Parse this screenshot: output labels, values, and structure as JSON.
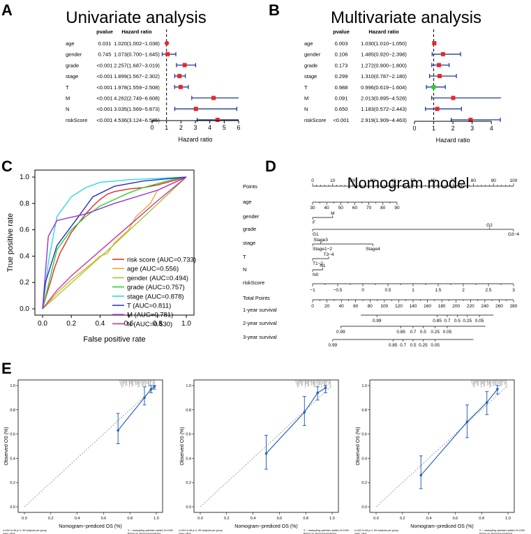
{
  "panels": {
    "A": "A",
    "B": "B",
    "C": "C",
    "D": "D",
    "E": "E"
  },
  "chart_data": [
    {
      "type": "forest",
      "id": "univariate",
      "title": "Univariate analysis",
      "col_headers": {
        "pvalue": "pvalue",
        "hr": "Hazard ratio"
      },
      "xlabel": "Hazard ratio",
      "xlim": [
        0,
        6
      ],
      "ticks": [
        0,
        1,
        2,
        3,
        4,
        5,
        6
      ],
      "ref_line": 1,
      "rows": [
        {
          "name": "age",
          "pvalue": "0.031",
          "hr_text": "1.020(1.002−1.038)",
          "hr": 1.02,
          "lo": 1.002,
          "hi": 1.038
        },
        {
          "name": "gender",
          "pvalue": "0.745",
          "hr_text": "1.073(0.700−1.645)",
          "hr": 1.073,
          "lo": 0.7,
          "hi": 1.645
        },
        {
          "name": "grade",
          "pvalue": "<0.001",
          "hr_text": "2.257(1.687−3.019)",
          "hr": 2.257,
          "lo": 1.687,
          "hi": 3.019
        },
        {
          "name": "stage",
          "pvalue": "<0.001",
          "hr_text": "1.899(1.567−2.302)",
          "hr": 1.899,
          "lo": 1.567,
          "hi": 2.302
        },
        {
          "name": "T",
          "pvalue": "<0.001",
          "hr_text": "1.978(1.559−2.508)",
          "hr": 1.978,
          "lo": 1.559,
          "hi": 2.508
        },
        {
          "name": "M",
          "pvalue": "<0.001",
          "hr_text": "4.262(2.749−6.608)",
          "hr": 4.262,
          "lo": 2.749,
          "hi": 6.608
        },
        {
          "name": "N",
          "pvalue": "<0.001",
          "hr_text": "3.035(1.569−5.873)",
          "hr": 3.035,
          "lo": 1.569,
          "hi": 5.873
        },
        {
          "name": "riskScore",
          "pvalue": "<0.001",
          "hr_text": "4.536(3.124−6.585)",
          "hr": 4.536,
          "lo": 3.124,
          "hi": 6.585
        }
      ]
    },
    {
      "type": "forest",
      "id": "multivariate",
      "title": "Multivariate analysis",
      "col_headers": {
        "pvalue": "pvalue",
        "hr": "Hazard ratio"
      },
      "xlabel": "Hazard ratio",
      "xlim": [
        0,
        4.5
      ],
      "ticks": [
        0,
        1,
        2,
        3,
        4
      ],
      "ref_line": 1,
      "rows": [
        {
          "name": "age",
          "pvalue": "0.003",
          "hr_text": "1.030(1.010−1.050)",
          "hr": 1.03,
          "lo": 1.01,
          "hi": 1.05,
          "color": "#e8262a"
        },
        {
          "name": "gender",
          "pvalue": "0.106",
          "hr_text": "1.485(0.920−2.398)",
          "hr": 1.485,
          "lo": 0.92,
          "hi": 2.398,
          "color": "#e8262a"
        },
        {
          "name": "grade",
          "pvalue": "0.173",
          "hr_text": "1.272(0.900−1.800)",
          "hr": 1.272,
          "lo": 0.9,
          "hi": 1.8,
          "color": "#e8262a"
        },
        {
          "name": "stage",
          "pvalue": "0.299",
          "hr_text": "1.310(0.787−2.180)",
          "hr": 1.31,
          "lo": 0.787,
          "hi": 2.18,
          "color": "#e8262a"
        },
        {
          "name": "T",
          "pvalue": "0.988",
          "hr_text": "0.996(0.619−1.604)",
          "hr": 0.996,
          "lo": 0.619,
          "hi": 1.604,
          "color": "#2bd12b"
        },
        {
          "name": "M",
          "pvalue": "0.091",
          "hr_text": "2.013(0.895−4.528)",
          "hr": 2.013,
          "lo": 0.895,
          "hi": 4.528,
          "color": "#e8262a"
        },
        {
          "name": "N",
          "pvalue": "0.650",
          "hr_text": "1.183(0.572−2.443)",
          "hr": 1.183,
          "lo": 0.572,
          "hi": 2.443,
          "color": "#e8262a"
        },
        {
          "name": "riskScore",
          "pvalue": "<0.001",
          "hr_text": "2.919(1.909−4.463)",
          "hr": 2.919,
          "lo": 1.909,
          "hi": 4.463,
          "color": "#e8262a"
        }
      ]
    },
    {
      "type": "line",
      "id": "roc",
      "xlabel": "False positive rate",
      "ylabel": "True positive rate",
      "xlim": [
        0,
        1
      ],
      "ylim": [
        0,
        1
      ],
      "ticks": [
        "0.0",
        "0.2",
        "0.4",
        "0.6",
        "0.8",
        "1.0"
      ],
      "series": [
        {
          "name": "risk score",
          "label": "risk score (AUC=0.733)",
          "color": "#e8262a",
          "x": [
            0,
            0.02,
            0.04,
            0.06,
            0.08,
            0.1,
            0.12,
            0.16,
            0.2,
            0.25,
            0.3,
            0.35,
            0.4,
            0.45,
            0.5,
            0.55,
            0.6,
            0.7,
            0.8,
            0.9,
            1.0
          ],
          "y": [
            0,
            0.08,
            0.15,
            0.22,
            0.3,
            0.36,
            0.42,
            0.5,
            0.58,
            0.65,
            0.72,
            0.78,
            0.83,
            0.87,
            0.89,
            0.9,
            0.91,
            0.92,
            0.94,
            0.97,
            1.0
          ]
        },
        {
          "name": "age",
          "label": "age (AUC=0.556)",
          "color": "#f0a92a",
          "x": [
            0,
            0.1,
            0.2,
            0.35,
            0.4,
            0.45,
            0.5,
            0.55,
            0.6,
            0.65,
            0.7,
            0.75,
            0.8,
            0.9,
            1.0
          ],
          "y": [
            0,
            0.12,
            0.22,
            0.35,
            0.4,
            0.42,
            0.5,
            0.55,
            0.6,
            0.7,
            0.75,
            0.8,
            0.9,
            0.95,
            1.0
          ]
        },
        {
          "name": "gender",
          "label": "gender (AUC=0.494)",
          "color": "#9acd32",
          "x": [
            0,
            0.5,
            1.0
          ],
          "y": [
            0,
            0.49,
            1.0
          ]
        },
        {
          "name": "grade",
          "label": "grade (AUC=0.757)",
          "color": "#2bd12b",
          "x": [
            0,
            0.04,
            0.1,
            0.2,
            0.3,
            0.4,
            0.5,
            0.6,
            0.7,
            0.8,
            0.9,
            1.0
          ],
          "y": [
            0,
            0.18,
            0.45,
            0.6,
            0.7,
            0.78,
            0.83,
            0.88,
            0.92,
            0.95,
            0.98,
            1.0
          ]
        },
        {
          "name": "stage",
          "label": "stage (AUC=0.878)",
          "color": "#2bd9e8",
          "x": [
            0,
            0.04,
            0.1,
            0.2,
            0.3,
            0.4,
            0.6,
            0.8,
            1.0
          ],
          "y": [
            0,
            0.35,
            0.7,
            0.85,
            0.92,
            0.96,
            0.98,
            0.99,
            1.0
          ]
        },
        {
          "name": "T",
          "label": "T (AUC=0.811)",
          "color": "#2a2ac8",
          "x": [
            0,
            0.02,
            0.1,
            0.25,
            0.35,
            0.5,
            0.7,
            1.0
          ],
          "y": [
            0,
            0.2,
            0.48,
            0.7,
            0.85,
            0.93,
            0.97,
            1.0
          ]
        },
        {
          "name": "M",
          "label": "M (AUC=0.781)",
          "color": "#9b30d0",
          "x": [
            0,
            0.04,
            0.1,
            0.3,
            0.5,
            0.8,
            1.0
          ],
          "y": [
            0,
            0.55,
            0.67,
            0.72,
            0.8,
            0.9,
            1.0
          ]
        },
        {
          "name": "N",
          "label": "N (AUC=0.530)",
          "color": "#d030a0",
          "x": [
            0,
            0.1,
            0.2,
            0.4,
            0.6,
            0.8,
            1.0
          ],
          "y": [
            0,
            0.14,
            0.25,
            0.44,
            0.63,
            0.82,
            1.0
          ]
        }
      ]
    },
    {
      "type": "nomogram",
      "id": "nomogram",
      "title": "Nomogram model",
      "rows": [
        {
          "name": "Points",
          "range": [
            0,
            100
          ],
          "ticks": [
            0,
            10,
            20,
            30,
            40,
            50,
            60,
            70,
            80,
            90,
            100
          ],
          "labels_above": true
        },
        {
          "name": "age",
          "range": [
            30,
            90
          ],
          "ticks": [
            30,
            40,
            50,
            60,
            70,
            80,
            90
          ],
          "labels_above": false,
          "tick_labels": [
            "30",
            "40",
            "50",
            "60",
            "70",
            "80",
            "90"
          ],
          "tick_label_xs": [
            30,
            40,
            50,
            60,
            70,
            80,
            90
          ],
          "line_points": [
            0,
            42
          ]
        },
        {
          "name": "gender",
          "line_points": [
            0,
            10
          ],
          "points": [
            {
              "label": "F",
              "pt": 0,
              "side": "below"
            },
            {
              "label": "M",
              "pt": 10,
              "side": "above"
            }
          ]
        },
        {
          "name": "grade",
          "line_points": [
            0,
            100
          ],
          "points": [
            {
              "label": "G1",
              "pt": 0,
              "side": "below"
            },
            {
              "label": "G2",
              "pt": 88,
              "side": "above"
            },
            {
              "label": "G3−4",
              "pt": 100,
              "side": "below"
            }
          ]
        },
        {
          "name": "stage",
          "line_points": [
            0,
            30
          ],
          "points": [
            {
              "label": "Stage1−2",
              "pt": 0,
              "side": "below"
            },
            {
              "label": "Stage3",
              "pt": 4,
              "side": "above"
            },
            {
              "label": "Stage4",
              "pt": 30,
              "side": "below"
            }
          ]
        },
        {
          "name": "T",
          "line_points": [
            0,
            8
          ],
          "points": [
            {
              "label": "T1−2",
              "pt": 0,
              "side": "below"
            },
            {
              "label": "T3−4",
              "pt": 8,
              "side": "above"
            }
          ]
        },
        {
          "name": "N",
          "line_points": [
            0,
            5
          ],
          "points": [
            {
              "label": "N0",
              "pt": 0,
              "side": "below"
            },
            {
              "label": "N1",
              "pt": 5,
              "side": "above"
            }
          ]
        },
        {
          "name": "riskScore",
          "scale": {
            "pt_start": 0,
            "pt_end": 100,
            "ticks": [
              "−1",
              "−0.5",
              "0",
              "0.5",
              "1",
              "1.5",
              "2",
              "2.5",
              "3"
            ]
          }
        },
        {
          "name": "Total Points",
          "scale": {
            "pt_start": 0,
            "pt_end": 100,
            "ticks": [
              "0",
              "20",
              "40",
              "60",
              "80",
              "100",
              "120",
              "140",
              "160",
              "180",
              "200",
              "220",
              "240",
              "260",
              "280"
            ]
          }
        },
        {
          "name": "1-year survival",
          "surv": {
            "line": [
              24,
              90
            ],
            "ticks": [
              [
                "0.99",
                32
              ],
              [
                "0.85",
                62
              ],
              [
                "0.7",
                67
              ],
              [
                "0.5",
                72
              ],
              [
                "0.25",
                77
              ],
              [
                "0.05",
                83
              ]
            ]
          }
        },
        {
          "name": "2-year survival",
          "surv": {
            "line": [
              14,
              86
            ],
            "ticks": [
              [
                "0.99",
                14
              ],
              [
                "0.85",
                44
              ],
              [
                "0.7",
                50
              ],
              [
                "0.5",
                55
              ],
              [
                "0.25",
                61
              ],
              [
                "0.05",
                67
              ]
            ]
          }
        },
        {
          "name": "3-year survival",
          "surv": {
            "line": [
              10,
              80
            ],
            "ticks": [
              [
                "0.99",
                10
              ],
              [
                "0.85",
                40
              ],
              [
                "0.7",
                45
              ],
              [
                "0.5",
                50
              ],
              [
                "0.25",
                55
              ],
              [
                "0.05",
                61
              ]
            ]
          }
        }
      ]
    },
    {
      "type": "calibration",
      "id": "calibration",
      "xlabel": "Nomogram−prediced OS (%)",
      "ylabel": "Observed OS (%)",
      "ticks": [
        "0.0",
        "0.2",
        "0.4",
        "0.6",
        "0.8",
        "1.0"
      ],
      "footer_left": "n=202 d=46 p=1, 55 subjects per group\nGray: ideal",
      "footer_right": "X − resampling optimism added, B=1000\nBased on observed-predicted",
      "plots": [
        {
          "name": "1-year",
          "points": [
            {
              "x": 0.71,
              "y": 0.63,
              "lo": 0.52,
              "hi": 0.77
            },
            {
              "x": 0.91,
              "y": 0.9,
              "lo": 0.84,
              "hi": 0.99
            },
            {
              "x": 0.96,
              "y": 0.97,
              "lo": 0.94,
              "hi": 1.0
            },
            {
              "x": 0.985,
              "y": 0.99,
              "lo": 0.97,
              "hi": 1.0
            }
          ]
        },
        {
          "name": "2-year",
          "points": [
            {
              "x": 0.5,
              "y": 0.44,
              "lo": 0.31,
              "hi": 0.59
            },
            {
              "x": 0.79,
              "y": 0.78,
              "lo": 0.67,
              "hi": 0.91
            },
            {
              "x": 0.89,
              "y": 0.94,
              "lo": 0.88,
              "hi": 0.99
            },
            {
              "x": 0.95,
              "y": 0.98,
              "lo": 0.94,
              "hi": 1.0
            }
          ]
        },
        {
          "name": "3-year",
          "points": [
            {
              "x": 0.34,
              "y": 0.26,
              "lo": 0.15,
              "hi": 0.42
            },
            {
              "x": 0.69,
              "y": 0.7,
              "lo": 0.57,
              "hi": 0.84
            },
            {
              "x": 0.84,
              "y": 0.86,
              "lo": 0.76,
              "hi": 0.95
            },
            {
              "x": 0.92,
              "y": 0.97,
              "lo": 0.93,
              "hi": 1.0
            }
          ]
        }
      ]
    }
  ]
}
